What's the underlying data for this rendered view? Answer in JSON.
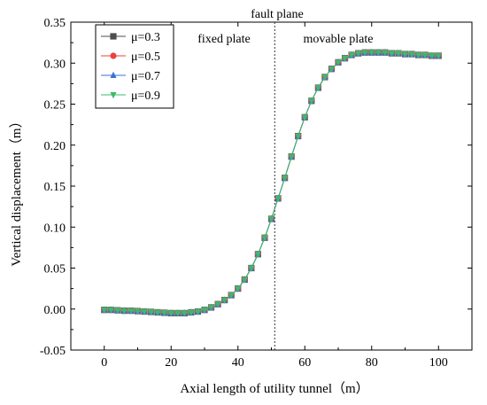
{
  "chart_data": {
    "type": "line",
    "title": "",
    "xlabel": "Axial length of utility tunnel（m）",
    "ylabel": "Vertical displacement（m）",
    "xlim": [
      -10,
      110
    ],
    "ylim": [
      -0.05,
      0.35
    ],
    "xticks": [
      0,
      20,
      40,
      60,
      80,
      100
    ],
    "yticks": [
      -0.05,
      0.0,
      0.05,
      0.1,
      0.15,
      0.2,
      0.25,
      0.3,
      0.35
    ],
    "ytick_labels": [
      "-0.05",
      "0.00",
      "0.05",
      "0.10",
      "0.15",
      "0.20",
      "0.25",
      "0.30",
      "0.35"
    ],
    "grid": false,
    "legend_position": "top-left",
    "fault_plane_x": 51,
    "annotations": {
      "fault_plane": "fault plane",
      "fixed_plate": "fixed plate",
      "movable_plate": "movable plate"
    },
    "x": [
      0,
      2,
      4,
      6,
      8,
      10,
      12,
      14,
      16,
      18,
      20,
      22,
      24,
      26,
      28,
      30,
      32,
      34,
      36,
      38,
      40,
      42,
      44,
      46,
      48,
      50,
      52,
      54,
      56,
      58,
      60,
      62,
      64,
      66,
      68,
      70,
      72,
      74,
      76,
      78,
      80,
      82,
      84,
      86,
      88,
      90,
      92,
      94,
      96,
      98,
      100
    ],
    "series": [
      {
        "name": "μ=0.3",
        "color": "#4d4d4d",
        "marker": "square",
        "values": [
          -0.001,
          -0.001,
          -0.0015,
          -0.002,
          -0.002,
          -0.0025,
          -0.003,
          -0.0035,
          -0.004,
          -0.0045,
          -0.005,
          -0.005,
          -0.005,
          -0.004,
          -0.003,
          -0.001,
          0.002,
          0.006,
          0.011,
          0.017,
          0.025,
          0.036,
          0.05,
          0.067,
          0.087,
          0.11,
          0.135,
          0.16,
          0.186,
          0.211,
          0.234,
          0.254,
          0.27,
          0.283,
          0.293,
          0.301,
          0.306,
          0.31,
          0.312,
          0.313,
          0.313,
          0.313,
          0.313,
          0.312,
          0.312,
          0.311,
          0.311,
          0.31,
          0.31,
          0.309,
          0.309
        ]
      },
      {
        "name": "μ=0.5",
        "color": "#e8433e",
        "marker": "circle",
        "values": [
          -0.001,
          -0.001,
          -0.0015,
          -0.002,
          -0.002,
          -0.0025,
          -0.003,
          -0.0035,
          -0.004,
          -0.0045,
          -0.005,
          -0.005,
          -0.005,
          -0.004,
          -0.003,
          -0.001,
          0.002,
          0.006,
          0.011,
          0.017,
          0.025,
          0.036,
          0.05,
          0.067,
          0.087,
          0.11,
          0.135,
          0.16,
          0.186,
          0.211,
          0.234,
          0.254,
          0.27,
          0.283,
          0.293,
          0.301,
          0.306,
          0.31,
          0.312,
          0.313,
          0.313,
          0.313,
          0.313,
          0.312,
          0.312,
          0.311,
          0.311,
          0.31,
          0.31,
          0.309,
          0.309
        ]
      },
      {
        "name": "μ=0.7",
        "color": "#3b6fd8",
        "marker": "triangle-up",
        "values": [
          -0.001,
          -0.001,
          -0.0015,
          -0.002,
          -0.002,
          -0.0025,
          -0.003,
          -0.0035,
          -0.004,
          -0.0045,
          -0.005,
          -0.005,
          -0.005,
          -0.004,
          -0.003,
          -0.001,
          0.002,
          0.006,
          0.011,
          0.017,
          0.025,
          0.036,
          0.05,
          0.067,
          0.087,
          0.11,
          0.135,
          0.16,
          0.186,
          0.211,
          0.234,
          0.254,
          0.27,
          0.283,
          0.293,
          0.301,
          0.306,
          0.31,
          0.312,
          0.313,
          0.313,
          0.313,
          0.313,
          0.312,
          0.312,
          0.311,
          0.311,
          0.31,
          0.31,
          0.309,
          0.309
        ]
      },
      {
        "name": "μ=0.9",
        "color": "#3fb86a",
        "marker": "triangle-down",
        "values": [
          -0.001,
          -0.001,
          -0.0015,
          -0.002,
          -0.002,
          -0.0025,
          -0.003,
          -0.0035,
          -0.004,
          -0.0045,
          -0.005,
          -0.005,
          -0.005,
          -0.004,
          -0.003,
          -0.001,
          0.002,
          0.006,
          0.011,
          0.017,
          0.025,
          0.036,
          0.05,
          0.067,
          0.087,
          0.11,
          0.135,
          0.16,
          0.186,
          0.211,
          0.234,
          0.254,
          0.27,
          0.283,
          0.293,
          0.301,
          0.306,
          0.31,
          0.312,
          0.313,
          0.313,
          0.313,
          0.313,
          0.312,
          0.312,
          0.311,
          0.311,
          0.31,
          0.31,
          0.309,
          0.309
        ]
      }
    ]
  }
}
